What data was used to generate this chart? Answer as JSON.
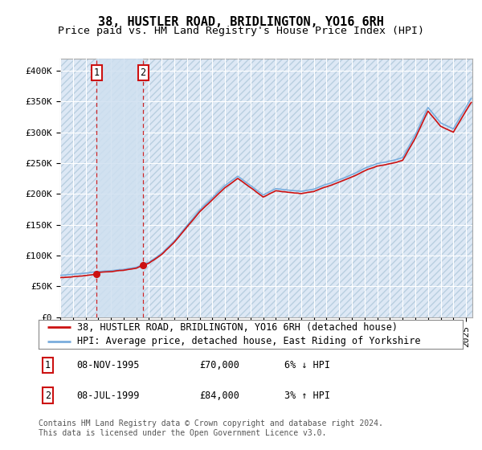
{
  "title": "38, HUSTLER ROAD, BRIDLINGTON, YO16 6RH",
  "subtitle": "Price paid vs. HM Land Registry's House Price Index (HPI)",
  "ylabel_ticks": [
    "£0",
    "£50K",
    "£100K",
    "£150K",
    "£200K",
    "£250K",
    "£300K",
    "£350K",
    "£400K"
  ],
  "ytick_values": [
    0,
    50000,
    100000,
    150000,
    200000,
    250000,
    300000,
    350000,
    400000
  ],
  "ylim": [
    0,
    420000
  ],
  "xlim_start": 1993.0,
  "xlim_end": 2025.5,
  "background_color": "#ffffff",
  "plot_bg_color": "#dde8f5",
  "hatch_color": "#b8cfe0",
  "grid_color": "#ffffff",
  "sale_decimal": [
    1995.8611,
    1999.5278
  ],
  "sale_prices": [
    70000,
    84000
  ],
  "sale_labels": [
    "1",
    "2"
  ],
  "sale_span_color": "#cfe0f0",
  "sale_line_color": "#cc1111",
  "sale_marker_color": "#cc1111",
  "hpi_line_color": "#7aaddd",
  "legend_sale_label": "38, HUSTLER ROAD, BRIDLINGTON, YO16 6RH (detached house)",
  "legend_hpi_label": "HPI: Average price, detached house, East Riding of Yorkshire",
  "annotation_1_date": "08-NOV-1995",
  "annotation_1_price": "£70,000",
  "annotation_1_hpi": "6% ↓ HPI",
  "annotation_2_date": "08-JUL-1999",
  "annotation_2_price": "£84,000",
  "annotation_2_hpi": "3% ↑ HPI",
  "footer_text": "Contains HM Land Registry data © Crown copyright and database right 2024.\nThis data is licensed under the Open Government Licence v3.0.",
  "title_fontsize": 11,
  "subtitle_fontsize": 9.5,
  "tick_fontsize": 8,
  "legend_fontsize": 8.5,
  "annotation_fontsize": 8.5,
  "footer_fontsize": 7
}
